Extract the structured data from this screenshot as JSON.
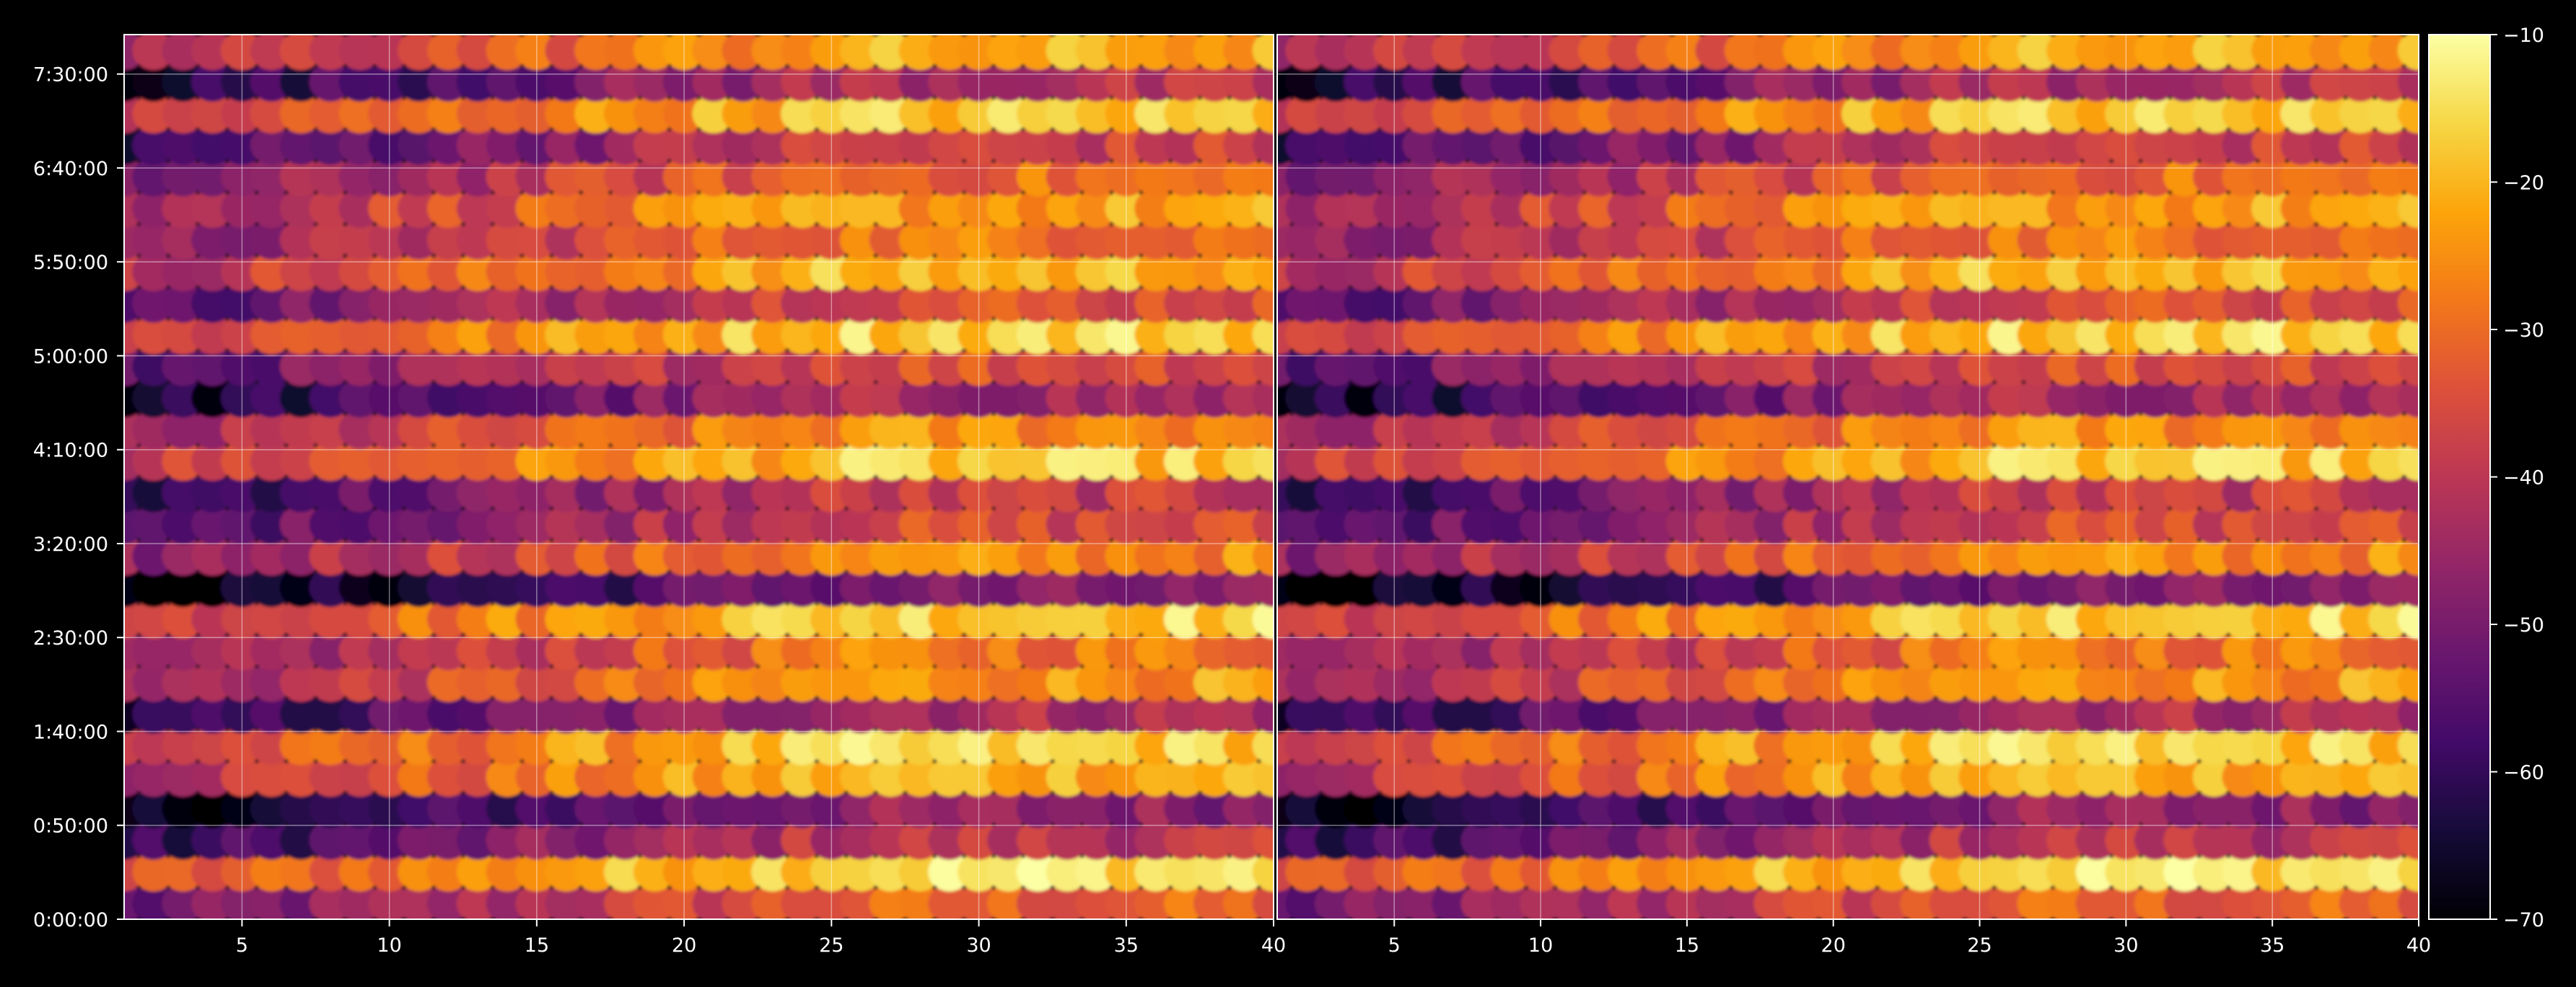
{
  "chart_data": {
    "type": "heatmap",
    "title": "",
    "xlabel": "",
    "ylabel": "",
    "colormap": "inferno",
    "background": "#000000",
    "grid": true,
    "panels": [
      {
        "name": "",
        "xlim": [
          1,
          40
        ],
        "x_ticks": [
          5,
          10,
          15,
          20,
          25,
          30,
          35,
          40
        ],
        "x_tick_labels": [
          "5",
          "10",
          "15",
          "20",
          "25",
          "30",
          "35",
          "40"
        ]
      },
      {
        "name": "",
        "xlim": [
          1,
          40
        ],
        "x_ticks": [
          5,
          10,
          15,
          20,
          25,
          30,
          35,
          40
        ],
        "x_tick_labels": [
          "5",
          "10",
          "15",
          "20",
          "25",
          "30",
          "35",
          "40"
        ]
      }
    ],
    "y_ticks_seconds": [
      0,
      3000,
      6000,
      9000,
      12000,
      15000,
      18000,
      21000,
      24000,
      27000
    ],
    "y_tick_labels": [
      "0:00:00",
      "0:50:00",
      "1:40:00",
      "2:30:00",
      "3:20:00",
      "4:10:00",
      "5:00:00",
      "5:50:00",
      "6:40:00",
      "7:30:00"
    ],
    "ylim_seconds": [
      0,
      28260
    ],
    "colorbar": {
      "range": [
        -70,
        -10
      ],
      "ticks": [
        -10,
        -20,
        -30,
        -40,
        -50,
        -60,
        -70
      ],
      "tick_labels": [
        "−10",
        "−20",
        "−30",
        "−40",
        "−50",
        "−60",
        "−70"
      ]
    },
    "rows": 28,
    "row_levels": [
      -40,
      -22,
      -48,
      -55,
      -28,
      -25,
      -50,
      -32,
      -36,
      -24,
      -58,
      -34,
      -44,
      -47,
      -26,
      -33,
      -52,
      -42,
      -24,
      -42,
      -28,
      -36,
      -31,
      -38,
      -46,
      -26,
      -50,
      -30
    ],
    "column_trend": "values increase (brighter) from x=1 toward x=25 and stay high to x=40"
  }
}
